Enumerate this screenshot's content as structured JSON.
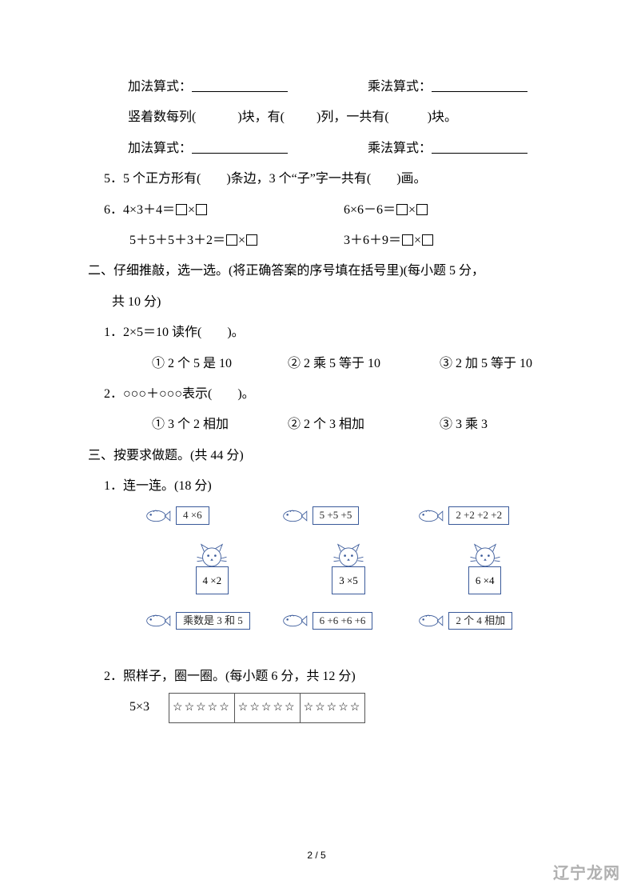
{
  "colors": {
    "text": "#000000",
    "border": "#3a5a9a",
    "watermark": "#b0b0b0"
  },
  "font": {
    "family": "SimSun",
    "size_body": 16,
    "size_box": 13
  },
  "lines": {
    "l1a": "加法算式：",
    "l1b": "乘法算式：",
    "l2a": "竖着数每列(",
    "l2b": ")块，有(",
    "l2c": ")列，一共有(",
    "l2d": ")块。",
    "l3a": "加法算式：",
    "l3b": "乘法算式：",
    "q5": "5．5 个正方形有(　　)条边，3 个“子”字一共有(　　)画。",
    "q6": "6．4×3＋4＝",
    "q6b": "6×6－6＝",
    "q6c": "5＋5＋5＋3＋2＝",
    "q6d": "3＋6＋9＝",
    "sec2": "二、仔细推敲，选一选。(将正确答案的序号填在括号里)(每小题 5 分，",
    "sec2b": "共 10 分)",
    "s2q1": "1．2×5＝10 读作(　　)。",
    "s2q1o1": "① 2 个 5 是 10",
    "s2q1o2": "② 2 乘 5 等于 10",
    "s2q1o3": "③ 2 加 5 等于 10",
    "s2q2": "2．○○○＋○○○表示(　　)。",
    "s2q2o1": "① 3 个 2 相加",
    "s2q2o2": "② 2 个 3 相加",
    "s2q2o3": "③ 3 乘 3",
    "sec3": "三、按要求做题。(共 44 分)",
    "s3q1": "1．连一连。(18 分)",
    "s3q2": "2．照样子，圈一圈。(每小题 6 分，共 12 分)",
    "s3q2a": "5×3"
  },
  "match": {
    "fish_top": [
      "4 ×6",
      "5 +5 +5",
      "2 +2 +2 +2"
    ],
    "cats": [
      "4 ×2",
      "3 ×5",
      "6 ×4"
    ],
    "fish_bot": [
      "乘数是 3 和 5",
      "6 +6 +6 +6",
      "2 个 4 相加"
    ]
  },
  "stars": {
    "groups": 3,
    "per_group": 5,
    "glyph": "☆"
  },
  "page_number": "2 / 5",
  "watermark": "辽宁龙网"
}
